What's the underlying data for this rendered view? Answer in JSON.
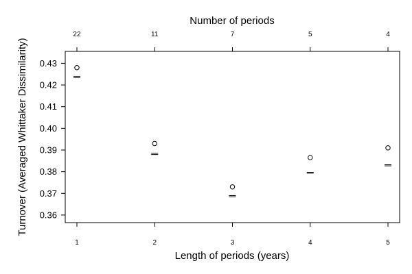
{
  "chart_data": {
    "type": "scatter",
    "title": "",
    "xlabel": "Length of periods (years)",
    "ylabel": "Turnover (Averaged Whittaker Dissimilarity)",
    "top_xlabel": "Number of periods",
    "x": [
      1,
      2,
      3,
      4,
      5
    ],
    "x_tick_labels": [
      "1",
      "2",
      "3",
      "4",
      "5"
    ],
    "top_tick_labels": [
      "22",
      "11",
      "7",
      "5",
      "4"
    ],
    "xlim": [
      0.85,
      5.15
    ],
    "ylim": [
      0.3565,
      0.4355
    ],
    "y_ticks": [
      0.36,
      0.37,
      0.38,
      0.39,
      0.4,
      0.41,
      0.42,
      0.43
    ],
    "y_tick_labels": [
      "0.36",
      "0.37",
      "0.38",
      "0.39",
      "0.40",
      "0.41",
      "0.42",
      "0.43"
    ],
    "series": [
      {
        "marker": "circle",
        "values": [
          0.428,
          0.393,
          0.373,
          0.3865,
          0.391
        ]
      },
      {
        "marker": "dash",
        "values": [
          0.4237,
          0.3883,
          0.3688,
          0.3795,
          0.383
        ],
        "lower": [
          0.4236,
          0.3879,
          0.3684,
          0.3794,
          0.3827
        ],
        "upper": [
          0.4238,
          0.3885,
          0.369,
          0.3796,
          0.3832
        ]
      }
    ],
    "grid": false,
    "legend": "none"
  }
}
